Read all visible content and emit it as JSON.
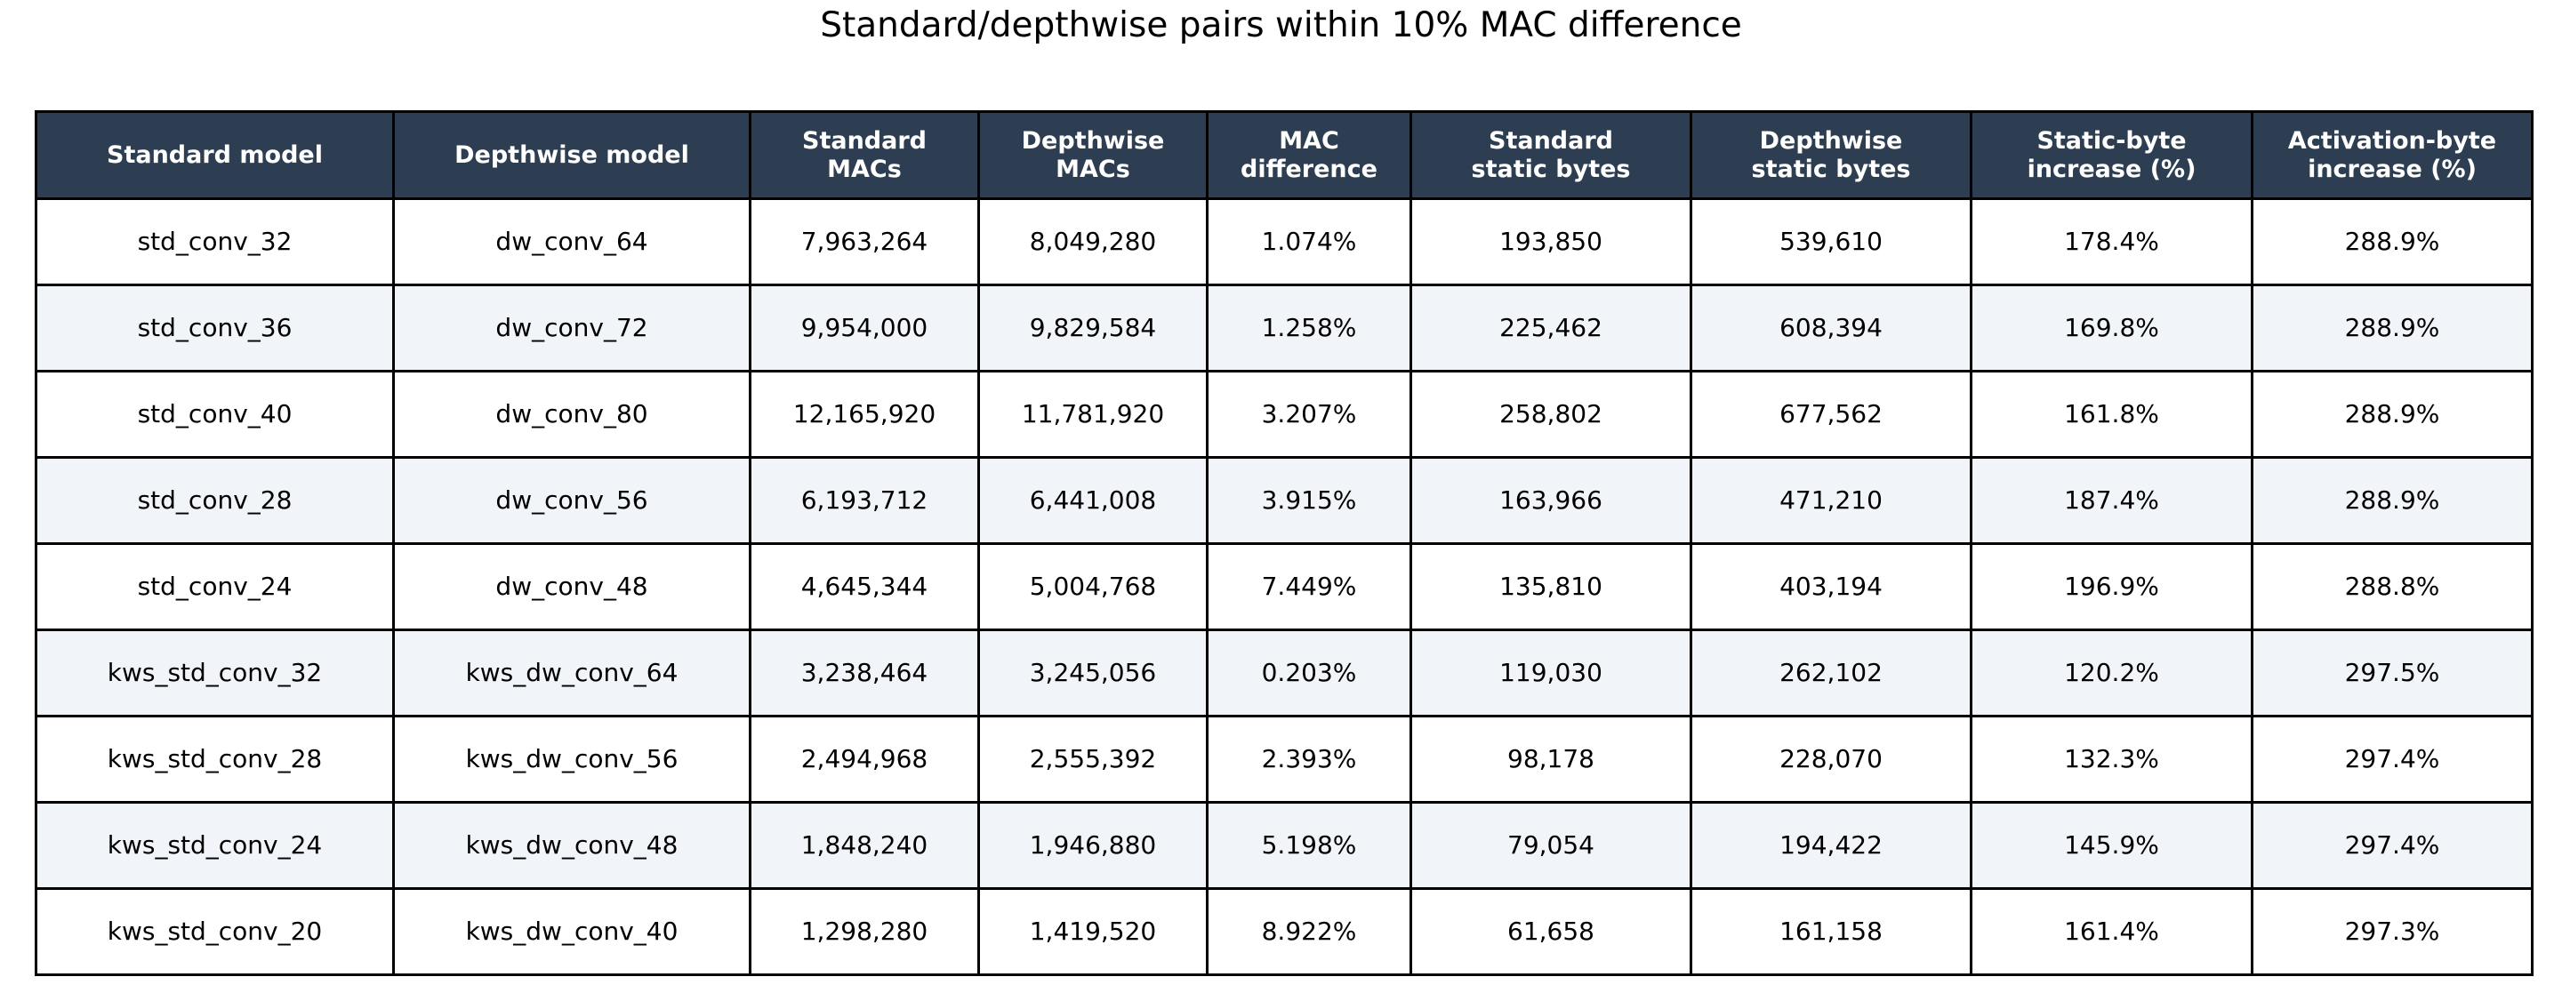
{
  "chart_data": {
    "type": "table",
    "title": "Standard/depthwise pairs within 10% MAC difference",
    "columns": [
      "Standard model",
      "Depthwise model",
      "Standard\nMACs",
      "Depthwise\nMACs",
      "MAC\ndifference",
      "Standard\nstatic bytes",
      "Depthwise\nstatic bytes",
      "Static-byte\nincrease (%)",
      "Activation-byte\nincrease (%)"
    ],
    "rows": [
      [
        "std_conv_32",
        "dw_conv_64",
        "7,963,264",
        "8,049,280",
        "1.074%",
        "193,850",
        "539,610",
        "178.4%",
        "288.9%"
      ],
      [
        "std_conv_36",
        "dw_conv_72",
        "9,954,000",
        "9,829,584",
        "1.258%",
        "225,462",
        "608,394",
        "169.8%",
        "288.9%"
      ],
      [
        "std_conv_40",
        "dw_conv_80",
        "12,165,920",
        "11,781,920",
        "3.207%",
        "258,802",
        "677,562",
        "161.8%",
        "288.9%"
      ],
      [
        "std_conv_28",
        "dw_conv_56",
        "6,193,712",
        "6,441,008",
        "3.915%",
        "163,966",
        "471,210",
        "187.4%",
        "288.9%"
      ],
      [
        "std_conv_24",
        "dw_conv_48",
        "4,645,344",
        "5,004,768",
        "7.449%",
        "135,810",
        "403,194",
        "196.9%",
        "288.8%"
      ],
      [
        "kws_std_conv_32",
        "kws_dw_conv_64",
        "3,238,464",
        "3,245,056",
        "0.203%",
        "119,030",
        "262,102",
        "120.2%",
        "297.5%"
      ],
      [
        "kws_std_conv_28",
        "kws_dw_conv_56",
        "2,494,968",
        "2,555,392",
        "2.393%",
        "98,178",
        "228,070",
        "132.3%",
        "297.4%"
      ],
      [
        "kws_std_conv_24",
        "kws_dw_conv_48",
        "1,848,240",
        "1,946,880",
        "5.198%",
        "79,054",
        "194,422",
        "145.9%",
        "297.4%"
      ],
      [
        "kws_std_conv_20",
        "kws_dw_conv_40",
        "1,298,280",
        "1,419,520",
        "8.922%",
        "61,658",
        "161,158",
        "161.4%",
        "297.3%"
      ]
    ],
    "colors": {
      "header_bg": "#2e3e52",
      "header_text": "#ffffff",
      "row_alt_bg": "#f1f5fa",
      "row_bg": "#ffffff",
      "border": "#000000"
    }
  }
}
